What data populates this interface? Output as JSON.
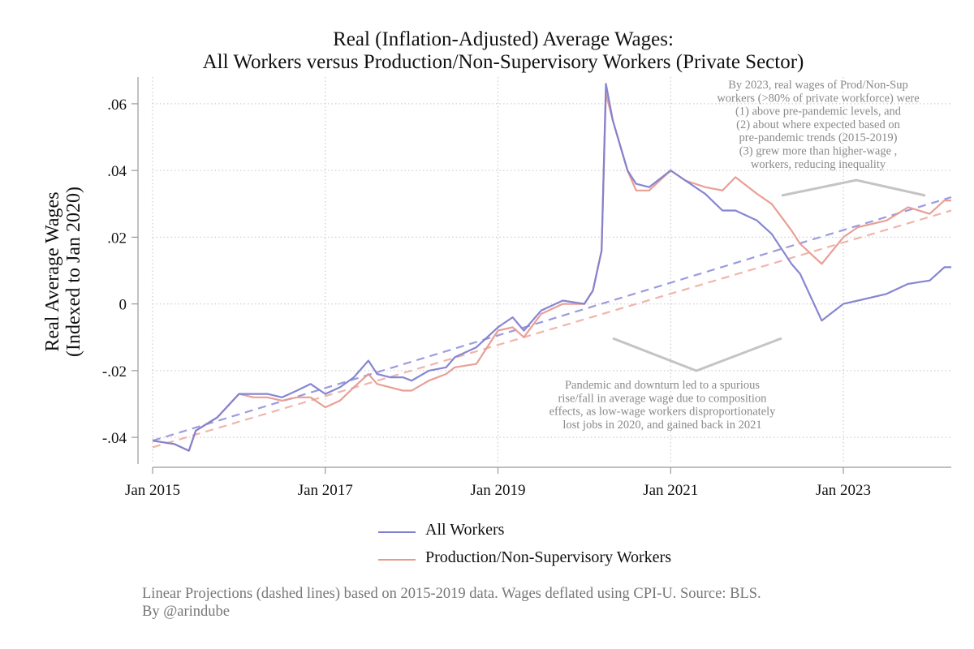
{
  "chart_data": {
    "type": "line",
    "title": "Real (Inflation-Adjusted) Average Wages:",
    "subtitle": "All Workers versus Production/Non-Supervisory Workers (Private Sector)",
    "ylabel_line1": "Real Average Wages",
    "ylabel_line2": "(Indexed to Jan 2020)",
    "xlim": [
      2015.0,
      2024.25
    ],
    "ylim": [
      -0.048,
      0.068
    ],
    "x_ticks": [
      {
        "value": 2015,
        "label": "Jan 2015"
      },
      {
        "value": 2017,
        "label": "Jan 2017"
      },
      {
        "value": 2019,
        "label": "Jan 2019"
      },
      {
        "value": 2021,
        "label": "Jan 2021"
      },
      {
        "value": 2023,
        "label": "Jan 2023"
      }
    ],
    "y_ticks": [
      {
        "value": 0.06,
        "label": ".06"
      },
      {
        "value": 0.04,
        "label": ".04"
      },
      {
        "value": 0.02,
        "label": ".02"
      },
      {
        "value": 0,
        "label": "0"
      },
      {
        "value": -0.02,
        "label": "-.02"
      },
      {
        "value": -0.04,
        "label": "-.04"
      }
    ],
    "grid": true,
    "series": [
      {
        "name": "All Workers",
        "color": "#7f7fd0",
        "x": [
          2015.0,
          2015.25,
          2015.42,
          2015.5,
          2015.75,
          2016.0,
          2016.17,
          2016.33,
          2016.5,
          2016.67,
          2016.83,
          2017.0,
          2017.17,
          2017.33,
          2017.5,
          2017.6,
          2017.75,
          2017.9,
          2018.0,
          2018.2,
          2018.4,
          2018.5,
          2018.75,
          2019.0,
          2019.17,
          2019.3,
          2019.5,
          2019.75,
          2020.0,
          2020.1,
          2020.2,
          2020.25,
          2020.33,
          2020.5,
          2020.6,
          2020.75,
          2021.0,
          2021.17,
          2021.4,
          2021.6,
          2021.75,
          2022.0,
          2022.17,
          2022.4,
          2022.5,
          2022.75,
          2023.0,
          2023.17,
          2023.5,
          2023.75,
          2024.0,
          2024.17,
          2024.25
        ],
        "values": [
          -0.041,
          -0.042,
          -0.044,
          -0.038,
          -0.034,
          -0.027,
          -0.027,
          -0.027,
          -0.028,
          -0.026,
          -0.024,
          -0.027,
          -0.025,
          -0.022,
          -0.017,
          -0.021,
          -0.022,
          -0.022,
          -0.023,
          -0.02,
          -0.019,
          -0.016,
          -0.013,
          -0.007,
          -0.004,
          -0.008,
          -0.002,
          0.001,
          0.0,
          0.004,
          0.016,
          0.066,
          0.055,
          0.04,
          0.036,
          0.035,
          0.04,
          0.037,
          0.033,
          0.028,
          0.028,
          0.025,
          0.021,
          0.012,
          0.009,
          -0.005,
          0.0,
          0.001,
          0.003,
          0.006,
          0.007,
          0.011,
          0.011
        ]
      },
      {
        "name": "Production/Non-Supervisory Workers",
        "color": "#e89a90",
        "x": [
          2015.0,
          2015.25,
          2015.42,
          2015.5,
          2015.75,
          2016.0,
          2016.17,
          2016.33,
          2016.5,
          2016.67,
          2016.83,
          2017.0,
          2017.17,
          2017.33,
          2017.5,
          2017.6,
          2017.75,
          2017.9,
          2018.0,
          2018.2,
          2018.4,
          2018.5,
          2018.75,
          2019.0,
          2019.17,
          2019.3,
          2019.5,
          2019.75,
          2020.0,
          2020.1,
          2020.2,
          2020.25,
          2020.33,
          2020.5,
          2020.6,
          2020.75,
          2021.0,
          2021.17,
          2021.4,
          2021.6,
          2021.75,
          2022.0,
          2022.17,
          2022.4,
          2022.5,
          2022.75,
          2023.0,
          2023.17,
          2023.5,
          2023.75,
          2024.0,
          2024.17,
          2024.25
        ],
        "values": [
          -0.041,
          -0.042,
          -0.044,
          -0.038,
          -0.034,
          -0.027,
          -0.028,
          -0.028,
          -0.029,
          -0.028,
          -0.028,
          -0.031,
          -0.029,
          -0.025,
          -0.021,
          -0.024,
          -0.025,
          -0.026,
          -0.026,
          -0.023,
          -0.021,
          -0.019,
          -0.018,
          -0.008,
          -0.007,
          -0.01,
          -0.003,
          0.0,
          0.0,
          0.004,
          0.016,
          0.063,
          0.055,
          0.04,
          0.034,
          0.034,
          0.04,
          0.037,
          0.035,
          0.034,
          0.038,
          0.033,
          0.03,
          0.022,
          0.018,
          0.012,
          0.02,
          0.023,
          0.025,
          0.029,
          0.027,
          0.031,
          0.031
        ]
      }
    ],
    "projections": [
      {
        "name": "All Workers projection",
        "color": "#9b9be0",
        "x": [
          2015.0,
          2024.25
        ],
        "values": [
          -0.041,
          0.032
        ]
      },
      {
        "name": "Production/Non-Supervisory Workers projection",
        "color": "#efb5ac",
        "x": [
          2015.0,
          2024.25
        ],
        "values": [
          -0.043,
          0.028
        ]
      }
    ],
    "annotations": {
      "top_lines": [
        "By 2023, real wages of Prod/Non-Sup",
        "workers (>80% of private workforce) were",
        "(1) above pre-pandemic levels, and",
        "(2) about where expected based on",
        "pre-pandemic trends (2015-2019)",
        "(3) grew more than higher-wage ,",
        "workers, reducing inequality"
      ],
      "bottom_lines": [
        "Pandemic and downturn led to a spurious",
        "rise/fall in average wage due to composition",
        "effects, as low-wage workers disproportionately",
        "lost jobs in 2020, and gained back in 2021"
      ]
    }
  },
  "legend": {
    "items": [
      {
        "label": "All Workers",
        "color": "#7f7fd0"
      },
      {
        "label": "Production/Non-Supervisory Workers",
        "color": "#e89a90"
      }
    ]
  },
  "notes": {
    "line1": "Linear Projections (dashed lines) based on 2015-2019 data. Wages deflated using CPI-U. Source: BLS.",
    "line2": "By @arindube"
  }
}
